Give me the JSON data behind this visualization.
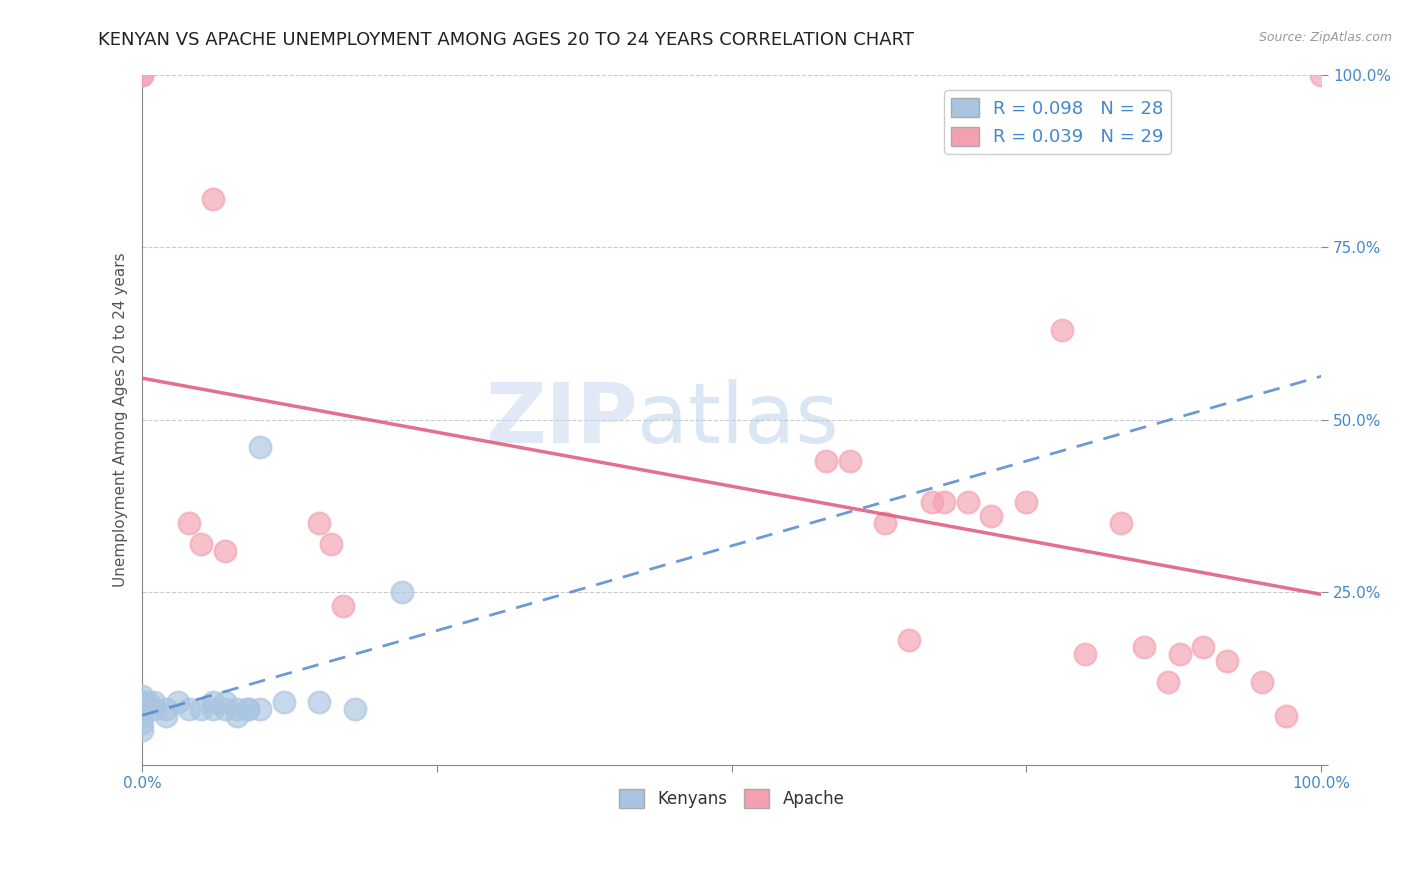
{
  "title": "KENYAN VS APACHE UNEMPLOYMENT AMONG AGES 20 TO 24 YEARS CORRELATION CHART",
  "source": "Source: ZipAtlas.com",
  "ylabel": "Unemployment Among Ages 20 to 24 years",
  "xlabel": "",
  "xlim": [
    0,
    1.0
  ],
  "ylim": [
    0,
    1.0
  ],
  "watermark_zip": "ZIP",
  "watermark_atlas": "atlas",
  "kenyan_color": "#a8c4e0",
  "apache_color": "#f4a0b0",
  "kenyan_line_color": "#5588cc",
  "apache_line_color": "#e06080",
  "background_color": "#ffffff",
  "grid_color": "#cccccc",
  "title_fontsize": 13,
  "axis_fontsize": 11,
  "tick_fontsize": 11,
  "tick_color": "#4488cc",
  "kenyan_x": [
    0.0,
    0.0,
    0.0,
    0.0,
    0.0,
    0.005,
    0.01,
    0.01,
    0.02,
    0.02,
    0.03,
    0.04,
    0.05,
    0.06,
    0.06,
    0.07,
    0.07,
    0.08,
    0.08,
    0.09,
    0.09,
    0.1,
    0.1,
    0.12,
    0.15,
    0.18,
    0.22,
    0.0
  ],
  "kenyan_y": [
    0.06,
    0.07,
    0.08,
    0.09,
    0.1,
    0.09,
    0.08,
    0.09,
    0.07,
    0.08,
    0.09,
    0.08,
    0.08,
    0.08,
    0.09,
    0.08,
    0.09,
    0.07,
    0.08,
    0.08,
    0.08,
    0.46,
    0.08,
    0.09,
    0.09,
    0.08,
    0.25,
    0.05
  ],
  "apache_x": [
    0.0,
    0.0,
    0.04,
    0.05,
    0.06,
    0.07,
    0.15,
    0.16,
    0.17,
    0.58,
    0.6,
    0.63,
    0.65,
    0.67,
    0.68,
    0.7,
    0.72,
    0.75,
    0.78,
    0.8,
    0.83,
    0.85,
    0.87,
    0.88,
    0.9,
    0.92,
    0.95,
    0.97,
    1.0
  ],
  "apache_y": [
    1.0,
    1.0,
    0.35,
    0.32,
    0.82,
    0.31,
    0.35,
    0.32,
    0.23,
    0.44,
    0.44,
    0.35,
    0.18,
    0.38,
    0.38,
    0.38,
    0.36,
    0.38,
    0.63,
    0.16,
    0.35,
    0.17,
    0.12,
    0.16,
    0.17,
    0.15,
    0.12,
    0.07,
    1.0
  ]
}
